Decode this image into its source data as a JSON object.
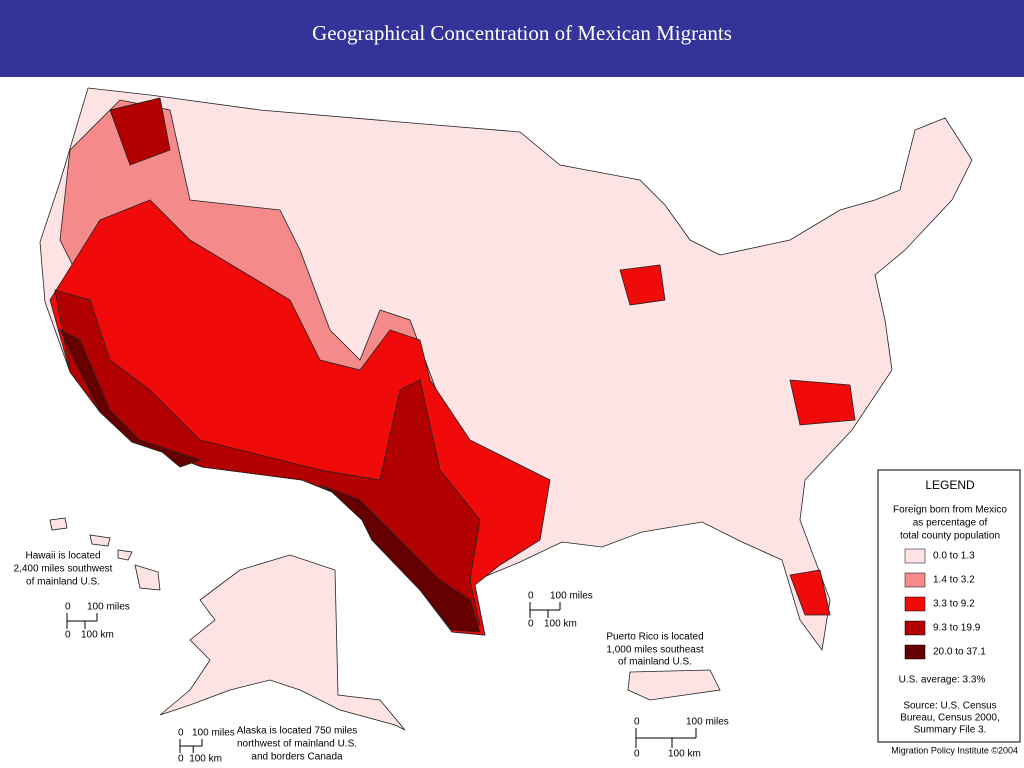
{
  "header": {
    "title": "Geographical Concentration of Mexican Migrants"
  },
  "legend": {
    "title": "LEGEND",
    "subtitle": [
      "Foreign born from Mexico",
      "as percentage of",
      "total county population"
    ],
    "items": [
      {
        "label": "0.0 to 1.3",
        "color": "#fde3e3"
      },
      {
        "label": "1.4 to 3.2",
        "color": "#f58a8a"
      },
      {
        "label": "3.3 to 9.2",
        "color": "#f00a0a"
      },
      {
        "label": "9.3 to 19.9",
        "color": "#b30000"
      },
      {
        "label": "20.0 to 37.1",
        "color": "#660000"
      }
    ],
    "average": "U.S. average: 3.3%",
    "source": [
      "Source: U.S. Census",
      "Bureau, Census 2000,",
      "Summary File 3."
    ]
  },
  "notes": {
    "hawaii": [
      "Hawaii is located",
      "2,400 miles southwest",
      "of mainland U.S."
    ],
    "puerto_rico": [
      "Puerto Rico is located",
      "1,000 miles southeast",
      "of mainland U.S."
    ],
    "alaska": [
      "Alaska is located 750 miles",
      "northwest of mainland U.S.",
      "and borders Canada"
    ]
  },
  "scales": {
    "hawaii": {
      "zero_miles": "0",
      "miles": "100 miles",
      "zero_km": "0",
      "km": "100 km"
    },
    "mainland": {
      "zero_miles": "0",
      "miles": "100 miles",
      "zero_km": "0",
      "km": "100 km"
    },
    "alaska": {
      "zero_miles": "0",
      "miles": "100 miles",
      "zero_km": "0",
      "km": "100 km"
    },
    "puerto_rico": {
      "zero_miles": "0",
      "miles": "100 miles",
      "zero_km": "0",
      "km": "100 km"
    }
  },
  "credit": "Migration Policy Institute ©2004"
}
